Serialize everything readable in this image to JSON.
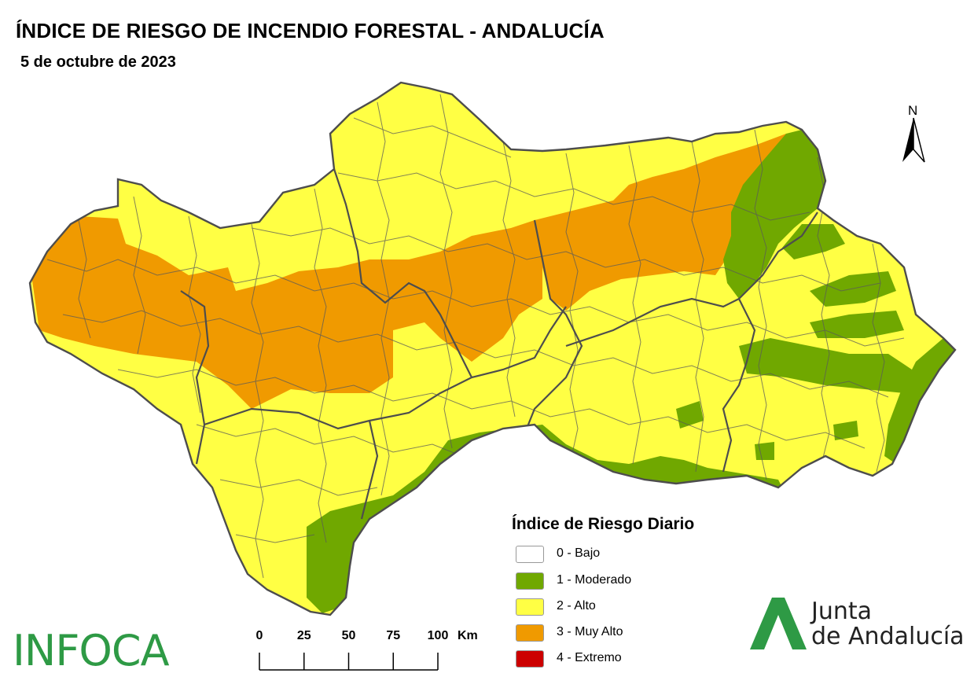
{
  "header": {
    "title": "ÍNDICE DE RIESGO DE INCENDIO FORESTAL - ANDALUCÍA",
    "date": "5 de octubre de 2023"
  },
  "north_arrow": {
    "label": "N"
  },
  "legend": {
    "title": "Índice de Riesgo Diario",
    "items": [
      {
        "label": "0 - Bajo",
        "color": "#ffffff"
      },
      {
        "label": "1 - Moderado",
        "color": "#70a800"
      },
      {
        "label": "2 - Alto",
        "color": "#ffff44"
      },
      {
        "label": "3 - Muy Alto",
        "color": "#f09a00"
      },
      {
        "label": "4 - Extremo",
        "color": "#cc0000"
      }
    ]
  },
  "scale_bar": {
    "ticks": [
      "0",
      "25",
      "50",
      "75",
      "100"
    ],
    "unit": "Km"
  },
  "logos": {
    "infoca": "INFOCA",
    "junta_line1": "Junta",
    "junta_line2": "de Andalucía"
  },
  "colors": {
    "low": "#ffffff",
    "moderate": "#70a800",
    "high": "#ffff44",
    "very_high": "#f09a00",
    "extreme": "#cc0000",
    "border": "#4d4d4d",
    "infoca_green": "#2e9a45"
  }
}
